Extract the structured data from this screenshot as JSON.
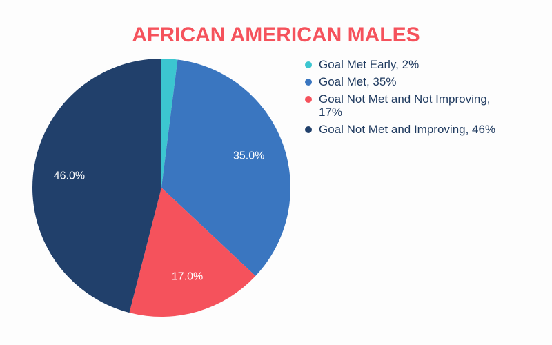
{
  "chart_data": {
    "type": "pie",
    "title": "AFRICAN AMERICAN MALES",
    "categories": [
      "Goal Met Early, 2%",
      "Goal Met, 35%",
      "Goal Not Met and Not Improving, 17%",
      "Goal Not Met and Improving, 46%"
    ],
    "values": [
      2,
      35,
      17,
      46
    ],
    "value_labels": [
      null,
      "35.0%",
      "17.0%",
      "46.0%"
    ],
    "colors": [
      "#3cc6d0",
      "#3a76c0",
      "#f5525c",
      "#21406b"
    ]
  }
}
